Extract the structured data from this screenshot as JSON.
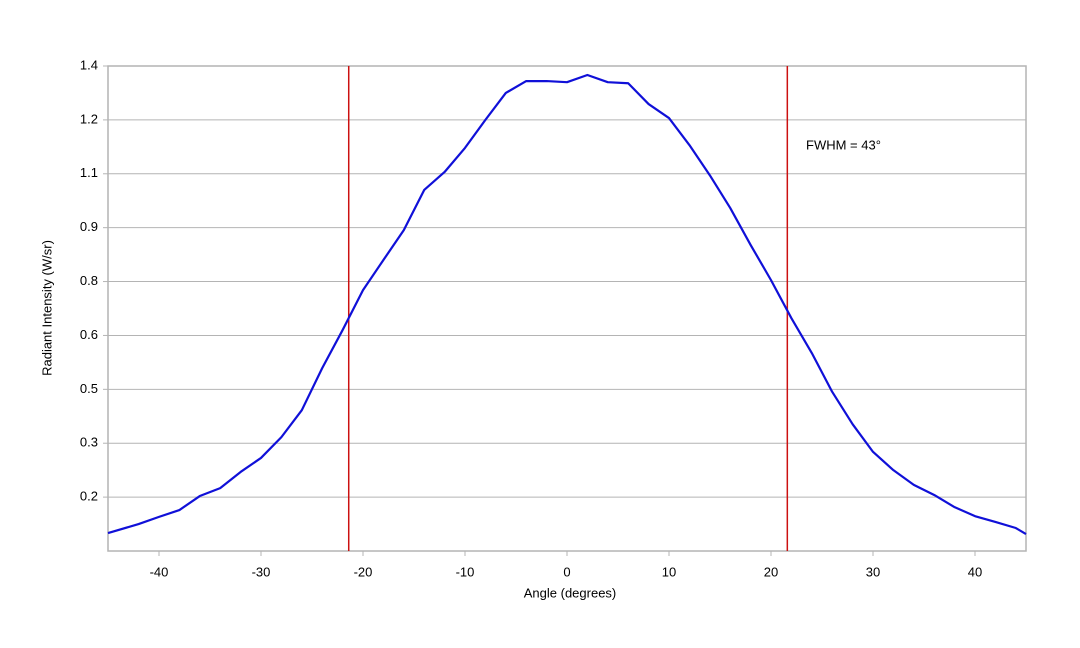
{
  "chart_data": {
    "type": "line",
    "x_label": "Angle (degrees)",
    "y_label": "Radiant Intensity (W/sr)",
    "annotation": "FWHM = 43°",
    "x": [
      -45,
      -42,
      -40,
      -38,
      -36,
      -34,
      -32,
      -30,
      -28,
      -26,
      -24,
      -22,
      -20,
      -18,
      -16,
      -14,
      -12,
      -10,
      -8,
      -6,
      -4,
      -2,
      0,
      2,
      4,
      6,
      8,
      10,
      12,
      14,
      16,
      18,
      20,
      22,
      24,
      26,
      28,
      30,
      32,
      34,
      36,
      38,
      40,
      42,
      44,
      45
    ],
    "series": [
      {
        "name": "Radiant Intensity",
        "color": "#1010d8",
        "values": [
          0.05,
          0.075,
          0.095,
          0.114,
          0.153,
          0.175,
          0.22,
          0.259,
          0.317,
          0.392,
          0.509,
          0.615,
          0.726,
          0.81,
          0.893,
          1.005,
          1.055,
          1.122,
          1.2,
          1.275,
          1.308,
          1.308,
          1.305,
          1.325,
          1.305,
          1.302,
          1.244,
          1.205,
          1.13,
          1.046,
          0.955,
          0.852,
          0.754,
          0.648,
          0.551,
          0.443,
          0.353,
          0.276,
          0.225,
          0.184,
          0.156,
          0.122,
          0.097,
          0.081,
          0.064,
          0.047
        ]
      }
    ],
    "vlines": [
      -21.4,
      21.6
    ],
    "vline_color": "#cc1010",
    "xlim": [
      -45,
      45
    ],
    "xticks": [
      -40,
      -30,
      -20,
      -10,
      0,
      10,
      20,
      30,
      40
    ],
    "ylim": [
      0,
      1.35
    ],
    "yticks": [
      {
        "value": 0.15,
        "label": "0.2"
      },
      {
        "value": 0.3,
        "label": "0.3"
      },
      {
        "value": 0.45,
        "label": "0.5"
      },
      {
        "value": 0.6,
        "label": "0.6"
      },
      {
        "value": 0.75,
        "label": "0.8"
      },
      {
        "value": 0.9,
        "label": "0.9"
      },
      {
        "value": 1.05,
        "label": "1.1"
      },
      {
        "value": 1.2,
        "label": "1.2"
      },
      {
        "value": 1.35,
        "label": "1.4"
      }
    ],
    "grid": true
  }
}
